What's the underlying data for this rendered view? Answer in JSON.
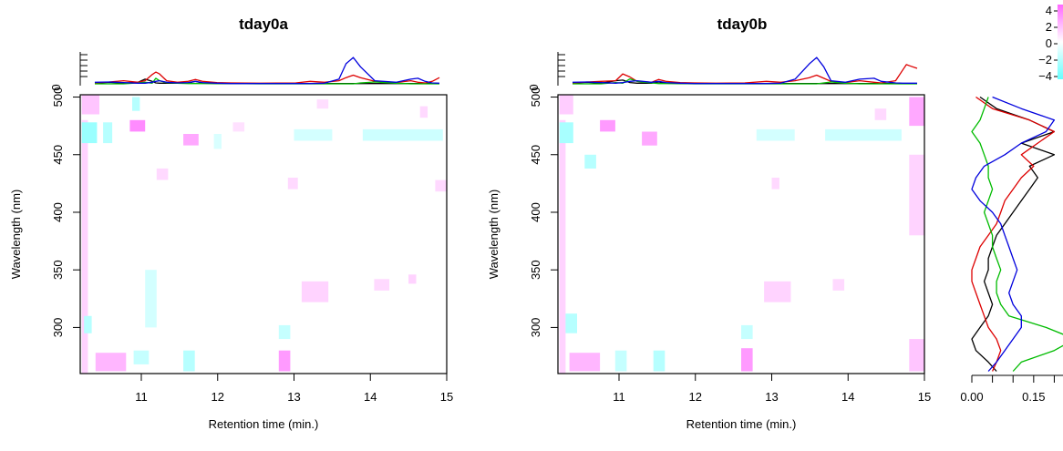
{
  "colors": {
    "black": "#000000",
    "red": "#dd0000",
    "green": "#00bb00",
    "blue": "#0000dd",
    "positive": "#ff66ff",
    "negative": "#66ffff"
  },
  "chart_data": [
    {
      "type": "heatmap",
      "title": "tday0a",
      "xlabel": "Retention time (min.)",
      "ylabel": "Wavelength (nm)",
      "xlim": [
        10.2,
        15.0
      ],
      "ylim": [
        260,
        502
      ],
      "xticks": [
        "11",
        "12",
        "13",
        "14",
        "15"
      ],
      "yticks": [
        "300",
        "350",
        "400",
        "450",
        "500"
      ],
      "profile_tick": "0",
      "cells": [
        {
          "x": [
            10.22,
            10.45
          ],
          "y": [
            485,
            502
          ],
          "v": 1.5
        },
        {
          "x": [
            10.22,
            10.3
          ],
          "y": [
            260,
            480
          ],
          "v": 1.0
        },
        {
          "x": [
            10.22,
            10.42
          ],
          "y": [
            460,
            478
          ],
          "v": -3.0
        },
        {
          "x": [
            10.5,
            10.62
          ],
          "y": [
            460,
            478
          ],
          "v": -2.0
        },
        {
          "x": [
            10.85,
            11.05
          ],
          "y": [
            470,
            480
          ],
          "v": 3.5
        },
        {
          "x": [
            10.88,
            10.98
          ],
          "y": [
            488,
            500
          ],
          "v": -2.0
        },
        {
          "x": [
            11.55,
            11.75
          ],
          "y": [
            458,
            468
          ],
          "v": 2.5
        },
        {
          "x": [
            11.2,
            11.35
          ],
          "y": [
            428,
            438
          ],
          "v": 0.8
        },
        {
          "x": [
            11.05,
            11.2
          ],
          "y": [
            300,
            350
          ],
          "v": -1.0
        },
        {
          "x": [
            10.25,
            10.35
          ],
          "y": [
            295,
            310
          ],
          "v": -2.0
        },
        {
          "x": [
            10.4,
            10.8
          ],
          "y": [
            262,
            278
          ],
          "v": 2.0
        },
        {
          "x": [
            10.9,
            11.1
          ],
          "y": [
            268,
            280
          ],
          "v": -1.5
        },
        {
          "x": [
            11.55,
            11.7
          ],
          "y": [
            262,
            280
          ],
          "v": -2.0
        },
        {
          "x": [
            12.8,
            12.95
          ],
          "y": [
            262,
            280
          ],
          "v": 3.0
        },
        {
          "x": [
            12.8,
            12.95
          ],
          "y": [
            290,
            302
          ],
          "v": -1.5
        },
        {
          "x": [
            13.1,
            13.45
          ],
          "y": [
            322,
            340
          ],
          "v": 1.0
        },
        {
          "x": [
            14.05,
            14.25
          ],
          "y": [
            332,
            342
          ],
          "v": 0.8
        },
        {
          "x": [
            14.5,
            14.6
          ],
          "y": [
            338,
            346
          ],
          "v": 1.0
        },
        {
          "x": [
            13.0,
            13.5
          ],
          "y": [
            462,
            472
          ],
          "v": -1.0
        },
        {
          "x": [
            13.9,
            14.95
          ],
          "y": [
            462,
            472
          ],
          "v": -1.2
        },
        {
          "x": [
            13.3,
            13.45
          ],
          "y": [
            490,
            498
          ],
          "v": 0.6
        },
        {
          "x": [
            14.65,
            14.75
          ],
          "y": [
            482,
            492
          ],
          "v": 0.8
        },
        {
          "x": [
            14.85,
            15.0
          ],
          "y": [
            418,
            428
          ],
          "v": 0.8
        },
        {
          "x": [
            12.92,
            13.05
          ],
          "y": [
            420,
            430
          ],
          "v": 0.8
        },
        {
          "x": [
            11.95,
            12.05
          ],
          "y": [
            455,
            468
          ],
          "v": -0.8
        },
        {
          "x": [
            12.2,
            12.35
          ],
          "y": [
            470,
            478
          ],
          "v": 0.5
        }
      ],
      "profile": {
        "x": [
          10.2,
          10.4,
          10.6,
          10.8,
          10.9,
          11.0,
          11.05,
          11.1,
          11.2,
          11.35,
          11.5,
          11.6,
          11.7,
          11.9,
          12.1,
          12.5,
          13.0,
          13.2,
          13.4,
          13.6,
          13.7,
          13.8,
          13.9,
          14.1,
          14.4,
          14.6,
          14.7,
          14.8,
          14.9,
          15.0
        ],
        "series": [
          {
            "color": "black",
            "values": [
              0.02,
              0.05,
              0.02,
              0.05,
              0.15,
              0.08,
              0.03,
              0.02,
              0.02,
              0.02,
              0.02,
              0.08,
              0.02,
              0.01,
              0.01,
              0.01,
              0.01,
              0.01,
              0.01,
              0.01,
              0.01,
              0.01,
              0.01,
              0.01,
              0.01,
              0.01,
              0.01,
              0.01,
              0.01,
              0.01
            ]
          },
          {
            "color": "red",
            "values": [
              0.03,
              0.06,
              0.1,
              0.05,
              0.1,
              0.3,
              0.38,
              0.32,
              0.1,
              0.05,
              0.08,
              0.14,
              0.08,
              0.04,
              0.03,
              0.02,
              0.03,
              0.08,
              0.05,
              0.1,
              0.2,
              0.28,
              0.2,
              0.08,
              0.04,
              0.1,
              0.05,
              0.03,
              0.08,
              0.2
            ]
          },
          {
            "color": "green",
            "values": [
              0.0,
              0.0,
              0.0,
              0.03,
              0.05,
              0.02,
              0.18,
              0.1,
              0.04,
              0.02,
              0.01,
              0.01,
              0.01,
              0.01,
              0.01,
              0.0,
              0.0,
              0.0,
              0.0,
              0.0,
              0.0,
              0.0,
              0.03,
              0.06,
              0.02,
              0.0,
              0.0,
              0.0,
              0.0,
              0.0
            ]
          },
          {
            "color": "blue",
            "values": [
              0.05,
              0.06,
              0.04,
              0.02,
              0.02,
              0.05,
              0.08,
              0.1,
              0.05,
              0.03,
              0.04,
              0.08,
              0.04,
              0.02,
              0.01,
              0.01,
              0.01,
              0.01,
              0.02,
              0.15,
              0.65,
              0.85,
              0.55,
              0.1,
              0.05,
              0.15,
              0.18,
              0.08,
              0.03,
              0.02
            ]
          }
        ]
      }
    },
    {
      "type": "heatmap",
      "title": "tday0b",
      "xlabel": "Retention time (min.)",
      "ylabel": "Wavelength (nm)",
      "xlim": [
        10.2,
        15.0
      ],
      "ylim": [
        260,
        502
      ],
      "xticks": [
        "11",
        "12",
        "13",
        "14",
        "15"
      ],
      "yticks": [
        "300",
        "350",
        "400",
        "450",
        "500"
      ],
      "profile_tick": "0",
      "cells": [
        {
          "x": [
            10.22,
            10.4
          ],
          "y": [
            485,
            502
          ],
          "v": 1.2
        },
        {
          "x": [
            10.22,
            10.3
          ],
          "y": [
            260,
            480
          ],
          "v": 1.0
        },
        {
          "x": [
            10.22,
            10.4
          ],
          "y": [
            460,
            478
          ],
          "v": -2.5
        },
        {
          "x": [
            10.75,
            10.95
          ],
          "y": [
            470,
            480
          ],
          "v": 3.0
        },
        {
          "x": [
            11.3,
            11.5
          ],
          "y": [
            458,
            470
          ],
          "v": 2.5
        },
        {
          "x": [
            10.55,
            10.7
          ],
          "y": [
            438,
            450
          ],
          "v": -2.0
        },
        {
          "x": [
            10.3,
            10.45
          ],
          "y": [
            295,
            312
          ],
          "v": -2.0
        },
        {
          "x": [
            10.35,
            10.75
          ],
          "y": [
            262,
            278
          ],
          "v": 2.0
        },
        {
          "x": [
            10.95,
            11.1
          ],
          "y": [
            262,
            280
          ],
          "v": -1.5
        },
        {
          "x": [
            11.45,
            11.6
          ],
          "y": [
            262,
            280
          ],
          "v": -2.0
        },
        {
          "x": [
            12.6,
            12.75
          ],
          "y": [
            262,
            282
          ],
          "v": 3.0
        },
        {
          "x": [
            12.6,
            12.75
          ],
          "y": [
            290,
            302
          ],
          "v": -1.5
        },
        {
          "x": [
            12.9,
            13.25
          ],
          "y": [
            322,
            340
          ],
          "v": 1.0
        },
        {
          "x": [
            13.8,
            13.95
          ],
          "y": [
            332,
            342
          ],
          "v": 0.8
        },
        {
          "x": [
            12.8,
            13.3
          ],
          "y": [
            462,
            472
          ],
          "v": -1.0
        },
        {
          "x": [
            13.7,
            14.7
          ],
          "y": [
            462,
            472
          ],
          "v": -1.2
        },
        {
          "x": [
            14.8,
            15.0
          ],
          "y": [
            475,
            500
          ],
          "v": 2.5
        },
        {
          "x": [
            14.8,
            15.0
          ],
          "y": [
            262,
            290
          ],
          "v": 1.5
        },
        {
          "x": [
            14.8,
            15.0
          ],
          "y": [
            380,
            450
          ],
          "v": 1.0
        },
        {
          "x": [
            14.35,
            14.5
          ],
          "y": [
            480,
            490
          ],
          "v": 0.8
        },
        {
          "x": [
            13.0,
            13.1
          ],
          "y": [
            420,
            430
          ],
          "v": 0.8
        }
      ],
      "profile": {
        "x": [
          10.2,
          10.4,
          10.6,
          10.8,
          10.9,
          11.0,
          11.1,
          11.3,
          11.4,
          11.5,
          11.7,
          11.9,
          12.2,
          12.6,
          12.9,
          13.1,
          13.3,
          13.5,
          13.6,
          13.7,
          13.8,
          14.0,
          14.2,
          14.4,
          14.5,
          14.7,
          14.8,
          14.85,
          14.9,
          15.0
        ],
        "series": [
          {
            "color": "black",
            "values": [
              0.02,
              0.05,
              0.02,
              0.1,
              0.12,
              0.04,
              0.02,
              0.02,
              0.06,
              0.02,
              0.01,
              0.01,
              0.01,
              0.01,
              0.01,
              0.01,
              0.01,
              0.01,
              0.01,
              0.01,
              0.01,
              0.01,
              0.01,
              0.01,
              0.01,
              0.01,
              0.01,
              0.01,
              0.01,
              0.01
            ]
          },
          {
            "color": "red",
            "values": [
              0.03,
              0.06,
              0.08,
              0.1,
              0.32,
              0.22,
              0.08,
              0.05,
              0.14,
              0.08,
              0.04,
              0.03,
              0.02,
              0.03,
              0.08,
              0.05,
              0.1,
              0.2,
              0.28,
              0.18,
              0.08,
              0.04,
              0.1,
              0.05,
              0.03,
              0.1,
              0.45,
              0.62,
              0.58,
              0.5
            ]
          },
          {
            "color": "green",
            "values": [
              0.0,
              0.0,
              0.0,
              0.04,
              0.02,
              0.16,
              0.08,
              0.03,
              0.01,
              0.01,
              0.01,
              0.0,
              0.0,
              0.0,
              0.0,
              0.0,
              0.0,
              0.0,
              0.0,
              0.03,
              0.06,
              0.02,
              0.0,
              0.0,
              0.0,
              0.0,
              0.0,
              0.0,
              0.0,
              0.0
            ]
          },
          {
            "color": "blue",
            "values": [
              0.05,
              0.06,
              0.04,
              0.02,
              0.04,
              0.08,
              0.1,
              0.05,
              0.08,
              0.04,
              0.02,
              0.01,
              0.01,
              0.01,
              0.01,
              0.02,
              0.15,
              0.65,
              0.85,
              0.55,
              0.1,
              0.05,
              0.15,
              0.18,
              0.08,
              0.03,
              0.02,
              0.02,
              0.02,
              0.02
            ]
          }
        ]
      }
    },
    {
      "type": "line",
      "xlim": [
        0.0,
        0.23
      ],
      "ylim": [
        260,
        502
      ],
      "xticks": [
        "0.00",
        "0.15"
      ],
      "xtick_values": [
        0.0,
        0.15
      ],
      "minor_xticks": [
        0.05,
        0.1,
        0.2
      ],
      "y": [
        500,
        490,
        480,
        470,
        460,
        450,
        440,
        430,
        420,
        410,
        400,
        390,
        380,
        370,
        360,
        350,
        340,
        330,
        320,
        310,
        300,
        290,
        280,
        270,
        262
      ],
      "series": [
        {
          "color": "black",
          "values": [
            0.02,
            0.06,
            0.14,
            0.2,
            0.12,
            0.2,
            0.14,
            0.16,
            0.14,
            0.12,
            0.1,
            0.08,
            0.06,
            0.05,
            0.04,
            0.04,
            0.03,
            0.04,
            0.05,
            0.04,
            0.02,
            0.0,
            0.01,
            0.04,
            0.06
          ]
        },
        {
          "color": "red",
          "values": [
            0.01,
            0.05,
            0.14,
            0.2,
            0.16,
            0.12,
            0.15,
            0.12,
            0.1,
            0.08,
            0.07,
            0.06,
            0.04,
            0.02,
            0.01,
            0.0,
            0.0,
            0.01,
            0.02,
            0.03,
            0.04,
            0.06,
            0.07,
            0.06,
            0.05
          ]
        },
        {
          "color": "green",
          "values": [
            0.04,
            0.03,
            0.02,
            0.0,
            0.02,
            0.03,
            0.04,
            0.04,
            0.05,
            0.04,
            0.03,
            0.04,
            0.05,
            0.05,
            0.06,
            0.07,
            0.06,
            0.06,
            0.07,
            0.09,
            0.18,
            0.25,
            0.2,
            0.12,
            0.1
          ]
        },
        {
          "color": "blue",
          "values": [
            0.05,
            0.12,
            0.2,
            0.18,
            0.12,
            0.08,
            0.03,
            0.01,
            0.0,
            0.02,
            0.05,
            0.07,
            0.08,
            0.09,
            0.1,
            0.11,
            0.1,
            0.09,
            0.1,
            0.12,
            0.12,
            0.1,
            0.08,
            0.06,
            0.04
          ]
        }
      ]
    }
  ],
  "legend": {
    "ticks": [
      "4",
      "2",
      "0",
      "−2",
      "−4"
    ],
    "values": [
      4,
      2,
      0,
      -2,
      -4
    ]
  }
}
